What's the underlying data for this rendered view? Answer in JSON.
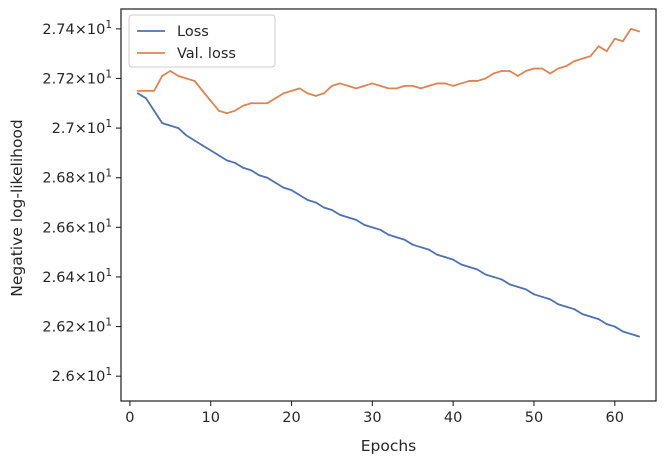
{
  "chart_data": {
    "type": "line",
    "title": "",
    "xlabel": "Epochs",
    "ylabel": "Negative log-likelihood",
    "xlim": [
      -1.1,
      65.1
    ],
    "ylim": [
      25.9,
      27.48
    ],
    "grid": false,
    "legend": {
      "location": "upper-left",
      "entries": [
        "Loss",
        "Val. loss"
      ]
    },
    "x_ticks": [
      {
        "value": 0,
        "label": "0"
      },
      {
        "value": 10,
        "label": "10"
      },
      {
        "value": 20,
        "label": "20"
      },
      {
        "value": 30,
        "label": "30"
      },
      {
        "value": 40,
        "label": "40"
      },
      {
        "value": 50,
        "label": "50"
      },
      {
        "value": 60,
        "label": "60"
      }
    ],
    "y_ticks": [
      {
        "value": 26.0,
        "base": "2.6",
        "exp": "1"
      },
      {
        "value": 26.2,
        "base": "2.62",
        "exp": "1"
      },
      {
        "value": 26.4,
        "base": "2.64",
        "exp": "1"
      },
      {
        "value": 26.6,
        "base": "2.66",
        "exp": "1"
      },
      {
        "value": 26.8,
        "base": "2.68",
        "exp": "1"
      },
      {
        "value": 27.0,
        "base": "2.7",
        "exp": "1"
      },
      {
        "value": 27.2,
        "base": "2.72",
        "exp": "1"
      },
      {
        "value": 27.4,
        "base": "2.74",
        "exp": "1"
      }
    ],
    "times_sign": "×",
    "tick_base": "10",
    "x": [
      1,
      2,
      3,
      4,
      5,
      6,
      7,
      8,
      9,
      10,
      11,
      12,
      13,
      14,
      15,
      16,
      17,
      18,
      19,
      20,
      21,
      22,
      23,
      24,
      25,
      26,
      27,
      28,
      29,
      30,
      31,
      32,
      33,
      34,
      35,
      36,
      37,
      38,
      39,
      40,
      41,
      42,
      43,
      44,
      45,
      46,
      47,
      48,
      49,
      50,
      51,
      52,
      53,
      54,
      55,
      56,
      57,
      58,
      59,
      60,
      61,
      62,
      63
    ],
    "series": [
      {
        "name": "Loss",
        "color": "#4c72b0",
        "values": [
          27.14,
          27.12,
          27.07,
          27.02,
          27.01,
          27.0,
          26.97,
          26.95,
          26.93,
          26.91,
          26.89,
          26.87,
          26.86,
          26.84,
          26.83,
          26.81,
          26.8,
          26.78,
          26.76,
          26.75,
          26.73,
          26.71,
          26.7,
          26.68,
          26.67,
          26.65,
          26.64,
          26.63,
          26.61,
          26.6,
          26.59,
          26.57,
          26.56,
          26.55,
          26.53,
          26.52,
          26.51,
          26.49,
          26.48,
          26.47,
          26.45,
          26.44,
          26.43,
          26.41,
          26.4,
          26.39,
          26.37,
          26.36,
          26.35,
          26.33,
          26.32,
          26.31,
          26.29,
          26.28,
          26.27,
          26.25,
          26.24,
          26.23,
          26.21,
          26.2,
          26.18,
          26.17,
          26.16
        ]
      },
      {
        "name": "Val. loss",
        "color": "#dd8452",
        "values": [
          27.15,
          27.15,
          27.15,
          27.21,
          27.23,
          27.21,
          27.2,
          27.19,
          27.15,
          27.11,
          27.07,
          27.06,
          27.07,
          27.09,
          27.1,
          27.1,
          27.1,
          27.12,
          27.14,
          27.15,
          27.16,
          27.14,
          27.13,
          27.14,
          27.17,
          27.18,
          27.17,
          27.16,
          27.17,
          27.18,
          27.17,
          27.16,
          27.16,
          27.17,
          27.17,
          27.16,
          27.17,
          27.18,
          27.18,
          27.17,
          27.18,
          27.19,
          27.19,
          27.2,
          27.22,
          27.23,
          27.23,
          27.21,
          27.23,
          27.24,
          27.24,
          27.22,
          27.24,
          27.25,
          27.27,
          27.28,
          27.29,
          27.33,
          27.31,
          27.36,
          27.35,
          27.4,
          27.39
        ]
      }
    ]
  }
}
